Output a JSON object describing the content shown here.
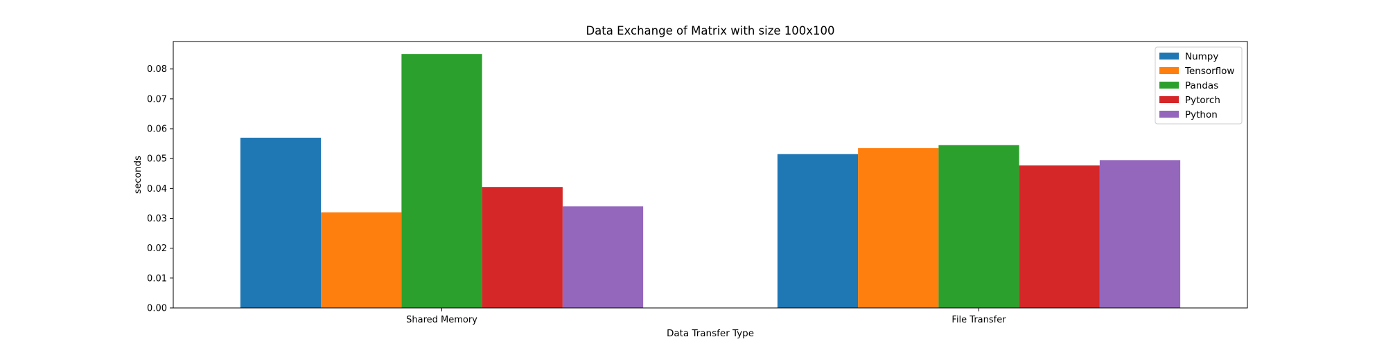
{
  "chart_data": {
    "type": "bar",
    "title": "Data Exchange of Matrix with size 100x100",
    "xlabel": "Data Transfer Type",
    "ylabel": "seconds",
    "categories": [
      "Shared Memory",
      "File Transfer"
    ],
    "series": [
      {
        "name": "Numpy",
        "color": "#1f77b4",
        "values": [
          0.057,
          0.0515
        ]
      },
      {
        "name": "Tensorflow",
        "color": "#ff7f0e",
        "values": [
          0.032,
          0.0535
        ]
      },
      {
        "name": "Pandas",
        "color": "#2ca02c",
        "values": [
          0.085,
          0.0545
        ]
      },
      {
        "name": "Pytorch",
        "color": "#d62728",
        "values": [
          0.0405,
          0.0477
        ]
      },
      {
        "name": "Python",
        "color": "#9467bd",
        "values": [
          0.034,
          0.0495
        ]
      }
    ],
    "ylim": [
      0,
      0.0892
    ],
    "yticks": [
      "0.00",
      "0.01",
      "0.02",
      "0.03",
      "0.04",
      "0.05",
      "0.06",
      "0.07",
      "0.08"
    ],
    "legend_position": "top-right",
    "grid": false
  }
}
